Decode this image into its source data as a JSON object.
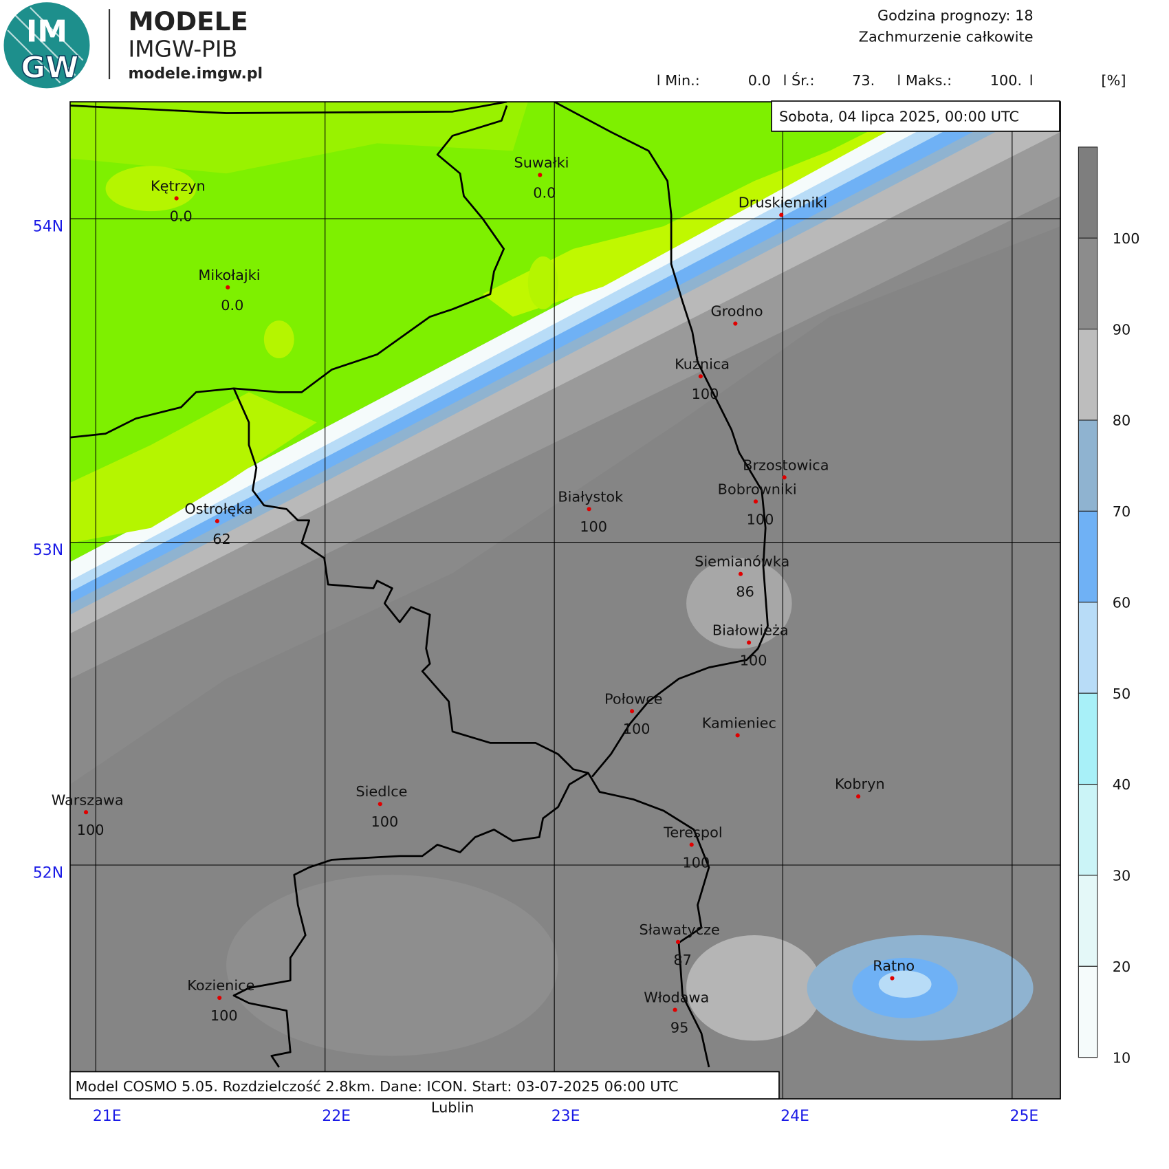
{
  "header": {
    "logo_top": "IM",
    "logo_bottom": "GW",
    "brand": "MODELE",
    "org": "IMGW-PIB",
    "site": "modele.imgw.pl",
    "forecast_hour": "Godzina prognozy: 18",
    "field": "Zachmurzenie całkowite",
    "stats": [
      "l Min.:",
      "0.0",
      "l Śr.:",
      "73.",
      "l Maks.:",
      "100.",
      "l"
    ],
    "unit": "[%]"
  },
  "date": "Sobota, 04 lipca 2025, 00:00 UTC",
  "grid": {
    "lat_labels": [
      "54N",
      "53N",
      "52N"
    ],
    "lon_labels": [
      "21E",
      "22E",
      "23E",
      "24E",
      "25E"
    ]
  },
  "cities": [
    {
      "name": "Kętrzyn",
      "value": "0.0"
    },
    {
      "name": "Suwałki",
      "value": "0.0"
    },
    {
      "name": "Druskienniki"
    },
    {
      "name": "Mikołajki",
      "value": "0.0"
    },
    {
      "name": "Grodno"
    },
    {
      "name": "Kuźnica",
      "value": "100"
    },
    {
      "name": "Brzostowica"
    },
    {
      "name": "Bobrowniki",
      "value": "100"
    },
    {
      "name": "Białystok",
      "value": "100"
    },
    {
      "name": "Ostrołęka",
      "value": "62"
    },
    {
      "name": "Siemianówka",
      "value": "86"
    },
    {
      "name": "Białowieża",
      "value": "100"
    },
    {
      "name": "Połowce",
      "value": "100"
    },
    {
      "name": "Kamieniec"
    },
    {
      "name": "Kobryn"
    },
    {
      "name": "Siedlce",
      "value": "100"
    },
    {
      "name": "Warszawa",
      "value": "100"
    },
    {
      "name": "Terespol",
      "value": "100"
    },
    {
      "name": "Sławatycze",
      "value": "87"
    },
    {
      "name": "Ratno"
    },
    {
      "name": "Kozienice",
      "value": "100"
    },
    {
      "name": "Włodawa",
      "value": "95"
    }
  ],
  "outside_label": "Lublin",
  "footer": "Model COSMO 5.05. Rozdzielczość 2.8km. Dane: ICON. Start: 03-07-2025 06:00 UTC",
  "legend": {
    "ticks": [
      100,
      90,
      80,
      70,
      60,
      50,
      40,
      30,
      20,
      10
    ],
    "colors": [
      "#7e7e7e",
      "#8c8c8c",
      "#bdbdbd",
      "#8fb3d0",
      "#6fb1f5",
      "#b8dcf7",
      "#a8f0f8",
      "#cbf4f7",
      "#e4f8f8",
      "#f5fbfb"
    ]
  }
}
